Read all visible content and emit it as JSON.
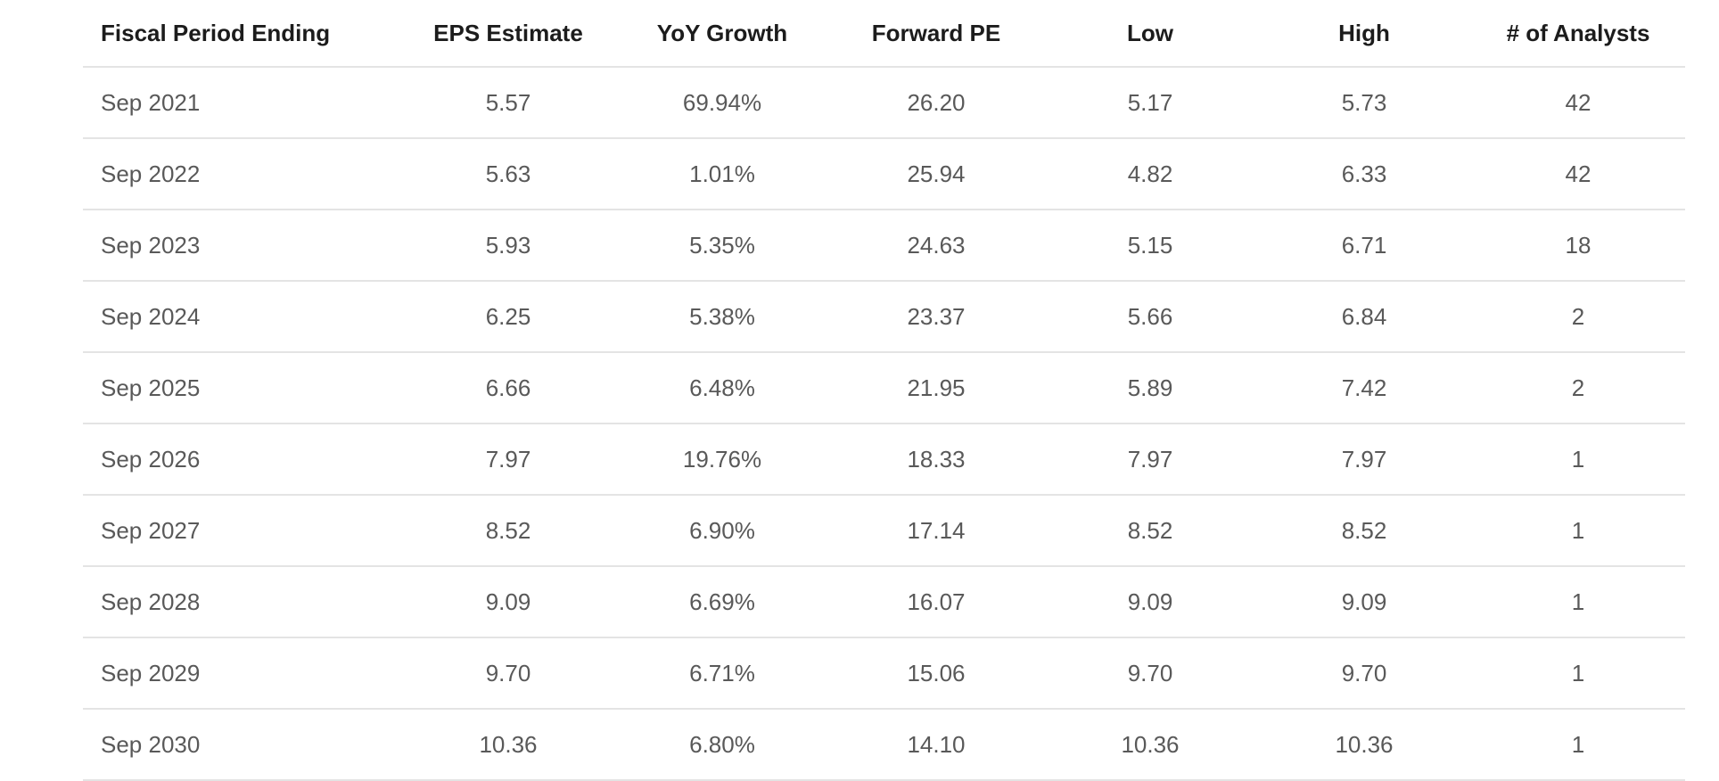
{
  "chart_data": {
    "type": "table",
    "columns": [
      "Fiscal Period Ending",
      "EPS Estimate",
      "YoY Growth",
      "Forward PE",
      "Low",
      "High",
      "# of Analysts"
    ],
    "rows": [
      [
        "Sep 2021",
        "5.57",
        "69.94%",
        "26.20",
        "5.17",
        "5.73",
        "42"
      ],
      [
        "Sep 2022",
        "5.63",
        "1.01%",
        "25.94",
        "4.82",
        "6.33",
        "42"
      ],
      [
        "Sep 2023",
        "5.93",
        "5.35%",
        "24.63",
        "5.15",
        "6.71",
        "18"
      ],
      [
        "Sep 2024",
        "6.25",
        "5.38%",
        "23.37",
        "5.66",
        "6.84",
        "2"
      ],
      [
        "Sep 2025",
        "6.66",
        "6.48%",
        "21.95",
        "5.89",
        "7.42",
        "2"
      ],
      [
        "Sep 2026",
        "7.97",
        "19.76%",
        "18.33",
        "7.97",
        "7.97",
        "1"
      ],
      [
        "Sep 2027",
        "8.52",
        "6.90%",
        "17.14",
        "8.52",
        "8.52",
        "1"
      ],
      [
        "Sep 2028",
        "9.09",
        "6.69%",
        "16.07",
        "9.09",
        "9.09",
        "1"
      ],
      [
        "Sep 2029",
        "9.70",
        "6.71%",
        "15.06",
        "9.70",
        "9.70",
        "1"
      ],
      [
        "Sep 2030",
        "10.36",
        "6.80%",
        "14.10",
        "10.36",
        "10.36",
        "1"
      ]
    ],
    "title": "",
    "layout_hints": {
      "first_column_align": "left",
      "other_columns_align": "center",
      "grid": "horizontal-dividers-only"
    }
  },
  "colors": {
    "background": "#ffffff",
    "header_text": "#1c1c1c",
    "cell_text": "#595959",
    "divider": "#e4e4e4"
  }
}
